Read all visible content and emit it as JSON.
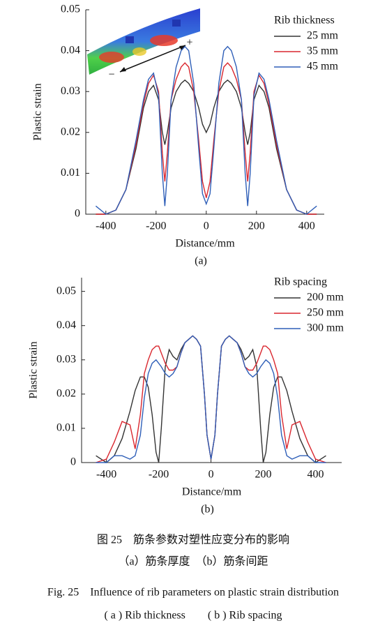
{
  "chart_data": [
    {
      "type": "line",
      "subtitle": "(a)",
      "xlabel": "Distance/mm",
      "ylabel": "Plastic strain",
      "legend_title": "Rib thickness",
      "legend": "upper right",
      "annotations": [
        "+",
        "−"
      ],
      "xlim": [
        -480,
        470
      ],
      "ylim": [
        0,
        0.05
      ],
      "xticks": [
        -400,
        -200,
        0,
        200,
        400
      ],
      "yticks": [
        0,
        0.01,
        0.02,
        0.03,
        0.04,
        0.05
      ],
      "x": [
        -440,
        -400,
        -360,
        -320,
        -280,
        -250,
        -230,
        -210,
        -190,
        -175,
        -165,
        -155,
        -140,
        -120,
        -100,
        -85,
        -70,
        -50,
        -30,
        -15,
        0,
        15,
        30,
        50,
        70,
        85,
        100,
        120,
        140,
        155,
        165,
        175,
        190,
        210,
        230,
        250,
        280,
        320,
        360,
        400,
        440
      ],
      "series": [
        {
          "name": "25 mm",
          "color": "#333333",
          "values": [
            0,
            0,
            0.001,
            0.006,
            0.016,
            0.026,
            0.03,
            0.0315,
            0.028,
            0.02,
            0.017,
            0.02,
            0.026,
            0.03,
            0.032,
            0.0328,
            0.032,
            0.03,
            0.026,
            0.022,
            0.02,
            0.022,
            0.026,
            0.03,
            0.032,
            0.0328,
            0.032,
            0.03,
            0.026,
            0.02,
            0.017,
            0.02,
            0.028,
            0.0315,
            0.03,
            0.026,
            0.016,
            0.006,
            0.001,
            0,
            0
          ]
        },
        {
          "name": "35 mm",
          "color": "#d9262e",
          "values": [
            0,
            0,
            0.001,
            0.006,
            0.017,
            0.027,
            0.032,
            0.034,
            0.03,
            0.015,
            0.008,
            0.015,
            0.028,
            0.033,
            0.036,
            0.037,
            0.036,
            0.03,
            0.018,
            0.008,
            0.004,
            0.008,
            0.018,
            0.03,
            0.036,
            0.037,
            0.036,
            0.033,
            0.028,
            0.015,
            0.008,
            0.015,
            0.03,
            0.034,
            0.032,
            0.027,
            0.017,
            0.006,
            0.001,
            0,
            0
          ]
        },
        {
          "name": "45 mm",
          "color": "#2f5fb8",
          "values": [
            0.002,
            0,
            0.001,
            0.006,
            0.018,
            0.028,
            0.033,
            0.0345,
            0.029,
            0.01,
            0.002,
            0.01,
            0.028,
            0.036,
            0.04,
            0.041,
            0.04,
            0.032,
            0.016,
            0.005,
            0.0025,
            0.005,
            0.016,
            0.032,
            0.04,
            0.041,
            0.04,
            0.036,
            0.028,
            0.01,
            0.002,
            0.01,
            0.029,
            0.0345,
            0.033,
            0.028,
            0.018,
            0.006,
            0.001,
            0,
            0.002
          ]
        }
      ]
    },
    {
      "type": "line",
      "subtitle": "(b)",
      "xlabel": "Distance/mm",
      "ylabel": "Plastic strain",
      "legend_title": "Rib spacing",
      "legend": "upper right",
      "xlim": [
        -495,
        500
      ],
      "ylim": [
        0,
        0.054
      ],
      "xticks": [
        -400,
        -200,
        0,
        200,
        400
      ],
      "yticks": [
        0,
        0.01,
        0.02,
        0.03,
        0.04,
        0.05
      ],
      "x": [
        -440,
        -400,
        -370,
        -340,
        -310,
        -290,
        -270,
        -255,
        -240,
        -225,
        -210,
        -200,
        -190,
        -175,
        -160,
        -145,
        -130,
        -115,
        -100,
        -85,
        -70,
        -55,
        -40,
        -25,
        -15,
        0,
        15,
        25,
        40,
        55,
        70,
        85,
        100,
        115,
        130,
        145,
        160,
        175,
        190,
        200,
        210,
        225,
        240,
        255,
        270,
        290,
        310,
        340,
        370,
        400,
        440
      ],
      "series": [
        {
          "name": "200 mm",
          "color": "#333333",
          "values": [
            0.002,
            0,
            0.002,
            0.007,
            0.015,
            0.021,
            0.025,
            0.025,
            0.022,
            0.014,
            0.003,
            0,
            0.01,
            0.028,
            0.033,
            0.031,
            0.03,
            0.033,
            0.035,
            0.036,
            0.037,
            0.036,
            0.034,
            0.02,
            0.008,
            0.001,
            0.008,
            0.02,
            0.034,
            0.036,
            0.037,
            0.036,
            0.035,
            0.033,
            0.03,
            0.031,
            0.033,
            0.028,
            0.01,
            0,
            0.003,
            0.014,
            0.022,
            0.025,
            0.025,
            0.021,
            0.015,
            0.007,
            0.002,
            0,
            0.002
          ]
        },
        {
          "name": "250 mm",
          "color": "#d9262e",
          "values": [
            0,
            0.001,
            0.006,
            0.012,
            0.011,
            0.004,
            0.014,
            0.026,
            0.03,
            0.033,
            0.034,
            0.034,
            0.032,
            0.029,
            0.027,
            0.027,
            0.028,
            0.032,
            0.035,
            0.036,
            0.037,
            0.036,
            0.034,
            0.02,
            0.008,
            0.001,
            0.008,
            0.02,
            0.034,
            0.036,
            0.037,
            0.036,
            0.035,
            0.032,
            0.028,
            0.027,
            0.027,
            0.029,
            0.032,
            0.034,
            0.034,
            0.033,
            0.03,
            0.026,
            0.014,
            0.004,
            0.011,
            0.012,
            0.006,
            0.001,
            0
          ]
        },
        {
          "name": "300 mm",
          "color": "#2f5fb8",
          "values": [
            0,
            0,
            0.002,
            0.002,
            0.001,
            0.002,
            0.008,
            0.019,
            0.026,
            0.029,
            0.03,
            0.029,
            0.028,
            0.026,
            0.025,
            0.026,
            0.028,
            0.032,
            0.035,
            0.036,
            0.037,
            0.036,
            0.034,
            0.02,
            0.008,
            0.001,
            0.008,
            0.02,
            0.034,
            0.036,
            0.037,
            0.036,
            0.035,
            0.032,
            0.028,
            0.026,
            0.025,
            0.026,
            0.028,
            0.029,
            0.03,
            0.029,
            0.026,
            0.019,
            0.008,
            0.002,
            0.001,
            0.002,
            0.002,
            0,
            0
          ]
        }
      ]
    }
  ],
  "caption": {
    "title_cn": "图 25　筋条参数对塑性应变分布的影响",
    "sub_cn": "（a）筋条厚度　（b）筋条间距",
    "title_en": "Fig. 25　Influence of rib parameters on plastic strain distribution",
    "sub_en": "( a )  Rib thickness　　( b )  Rib spacing"
  }
}
